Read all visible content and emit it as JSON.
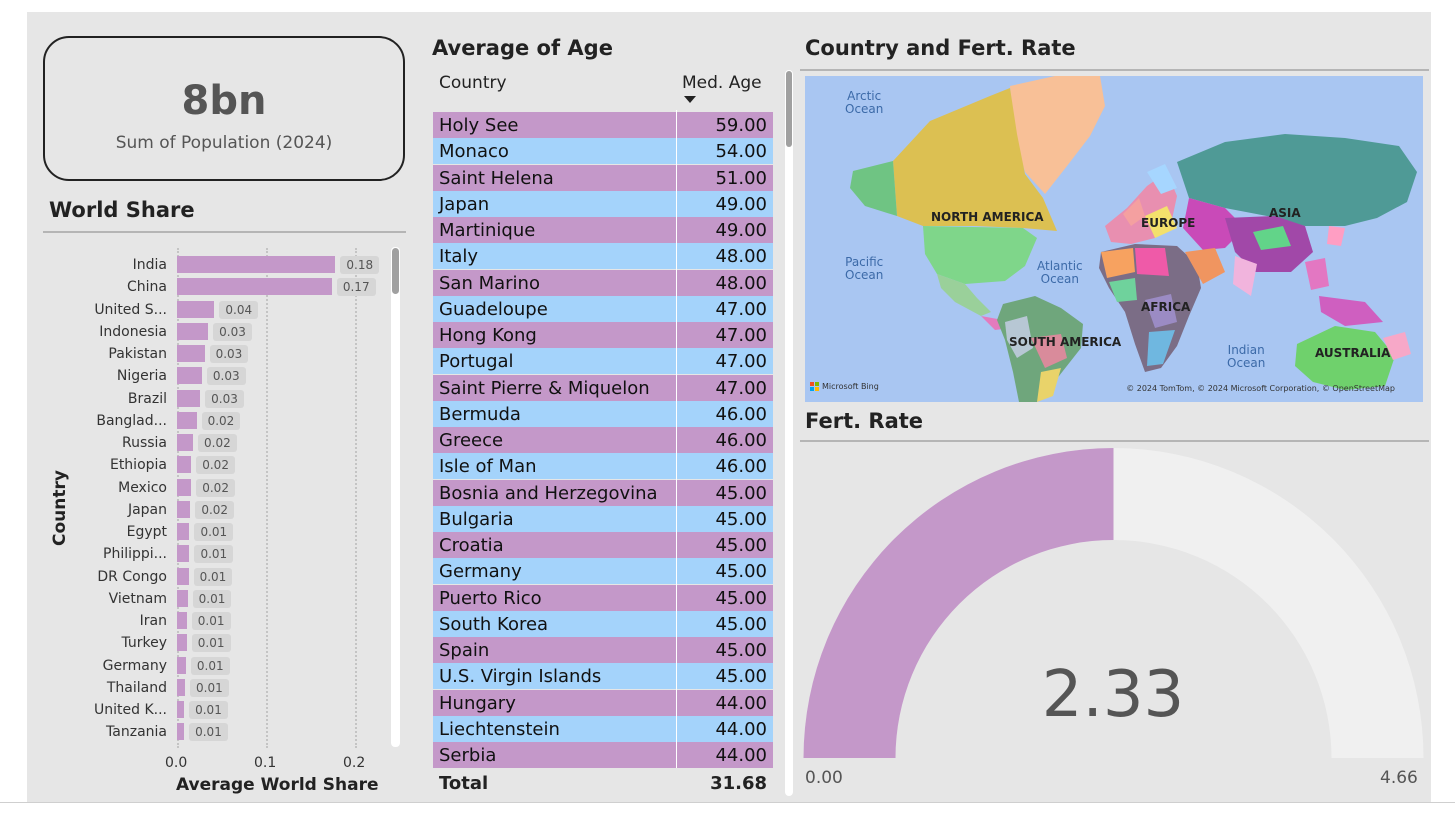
{
  "kpi": {
    "value": "8bn",
    "label": "Sum of Population (2024)"
  },
  "world_share": {
    "title": "World Share",
    "y_axis_title": "Country",
    "x_axis_title": "Average World Share",
    "x_ticks": [
      "0.0",
      "0.1",
      "0.2"
    ],
    "bar_color": "#c498c9",
    "rows": [
      {
        "country": "India",
        "label": "0.18",
        "value": 0.178
      },
      {
        "country": "China",
        "label": "0.17",
        "value": 0.174
      },
      {
        "country": "United S...",
        "label": "0.04",
        "value": 0.042
      },
      {
        "country": "Indonesia",
        "label": "0.03",
        "value": 0.035
      },
      {
        "country": "Pakistan",
        "label": "0.03",
        "value": 0.031
      },
      {
        "country": "Nigeria",
        "label": "0.03",
        "value": 0.028
      },
      {
        "country": "Brazil",
        "label": "0.03",
        "value": 0.026
      },
      {
        "country": "Banglad...",
        "label": "0.02",
        "value": 0.022
      },
      {
        "country": "Russia",
        "label": "0.02",
        "value": 0.018
      },
      {
        "country": "Ethiopia",
        "label": "0.02",
        "value": 0.016
      },
      {
        "country": "Mexico",
        "label": "0.02",
        "value": 0.016
      },
      {
        "country": "Japan",
        "label": "0.02",
        "value": 0.015
      },
      {
        "country": "Egypt",
        "label": "0.01",
        "value": 0.014
      },
      {
        "country": "Philippi...",
        "label": "0.01",
        "value": 0.014
      },
      {
        "country": "DR Congo",
        "label": "0.01",
        "value": 0.013
      },
      {
        "country": "Vietnam",
        "label": "0.01",
        "value": 0.012
      },
      {
        "country": "Iran",
        "label": "0.01",
        "value": 0.011
      },
      {
        "country": "Turkey",
        "label": "0.01",
        "value": 0.011
      },
      {
        "country": "Germany",
        "label": "0.01",
        "value": 0.01
      },
      {
        "country": "Thailand",
        "label": "0.01",
        "value": 0.009
      },
      {
        "country": "United K...",
        "label": "0.01",
        "value": 0.008
      },
      {
        "country": "Tanzania",
        "label": "0.01",
        "value": 0.008
      }
    ]
  },
  "age_table": {
    "title": "Average of Age",
    "col_country": "Country",
    "col_age": "Med. Age",
    "row_colors": [
      "#c498c9",
      "#a4d3fb"
    ],
    "rows": [
      {
        "country": "Holy See",
        "age": "59.00"
      },
      {
        "country": "Monaco",
        "age": "54.00"
      },
      {
        "country": "Saint Helena",
        "age": "51.00"
      },
      {
        "country": "Japan",
        "age": "49.00"
      },
      {
        "country": "Martinique",
        "age": "49.00"
      },
      {
        "country": "Italy",
        "age": "48.00"
      },
      {
        "country": "San Marino",
        "age": "48.00"
      },
      {
        "country": "Guadeloupe",
        "age": "47.00"
      },
      {
        "country": "Hong Kong",
        "age": "47.00"
      },
      {
        "country": "Portugal",
        "age": "47.00"
      },
      {
        "country": "Saint Pierre & Miquelon",
        "age": "47.00"
      },
      {
        "country": "Bermuda",
        "age": "46.00"
      },
      {
        "country": "Greece",
        "age": "46.00"
      },
      {
        "country": "Isle of Man",
        "age": "46.00"
      },
      {
        "country": "Bosnia and Herzegovina",
        "age": "45.00"
      },
      {
        "country": "Bulgaria",
        "age": "45.00"
      },
      {
        "country": "Croatia",
        "age": "45.00"
      },
      {
        "country": "Germany",
        "age": "45.00"
      },
      {
        "country": "Puerto Rico",
        "age": "45.00"
      },
      {
        "country": "South Korea",
        "age": "45.00"
      },
      {
        "country": "Spain",
        "age": "45.00"
      },
      {
        "country": "U.S. Virgin Islands",
        "age": "45.00"
      },
      {
        "country": "Hungary",
        "age": "44.00"
      },
      {
        "country": "Liechtenstein",
        "age": "44.00"
      },
      {
        "country": "Serbia",
        "age": "44.00"
      }
    ],
    "total_label": "Total",
    "total_value": "31.68"
  },
  "map": {
    "title": "Country and Fert. Rate",
    "oceans": {
      "arctic": "Arctic\nOcean",
      "pacific": "Pacific\nOcean",
      "atlantic": "Atlantic\nOcean",
      "indian": "Indian\nOcean"
    },
    "continents": {
      "north_america": "NORTH AMERICA",
      "south_america": "SOUTH AMERICA",
      "europe": "EUROPE",
      "africa": "AFRICA",
      "asia": "ASIA",
      "australia": "AUSTRALIA"
    },
    "bing_label": "Microsoft Bing",
    "attribution": "© 2024 TomTom, © 2024 Microsoft Corporation, © OpenStreetMap"
  },
  "gauge": {
    "title": "Fert. Rate",
    "value": 2.33,
    "value_label": "2.33",
    "min": 0,
    "max": 4.66,
    "min_label": "0.00",
    "max_label": "4.66",
    "fill_color": "#c498c9",
    "track_color": "#f0f0f0"
  }
}
